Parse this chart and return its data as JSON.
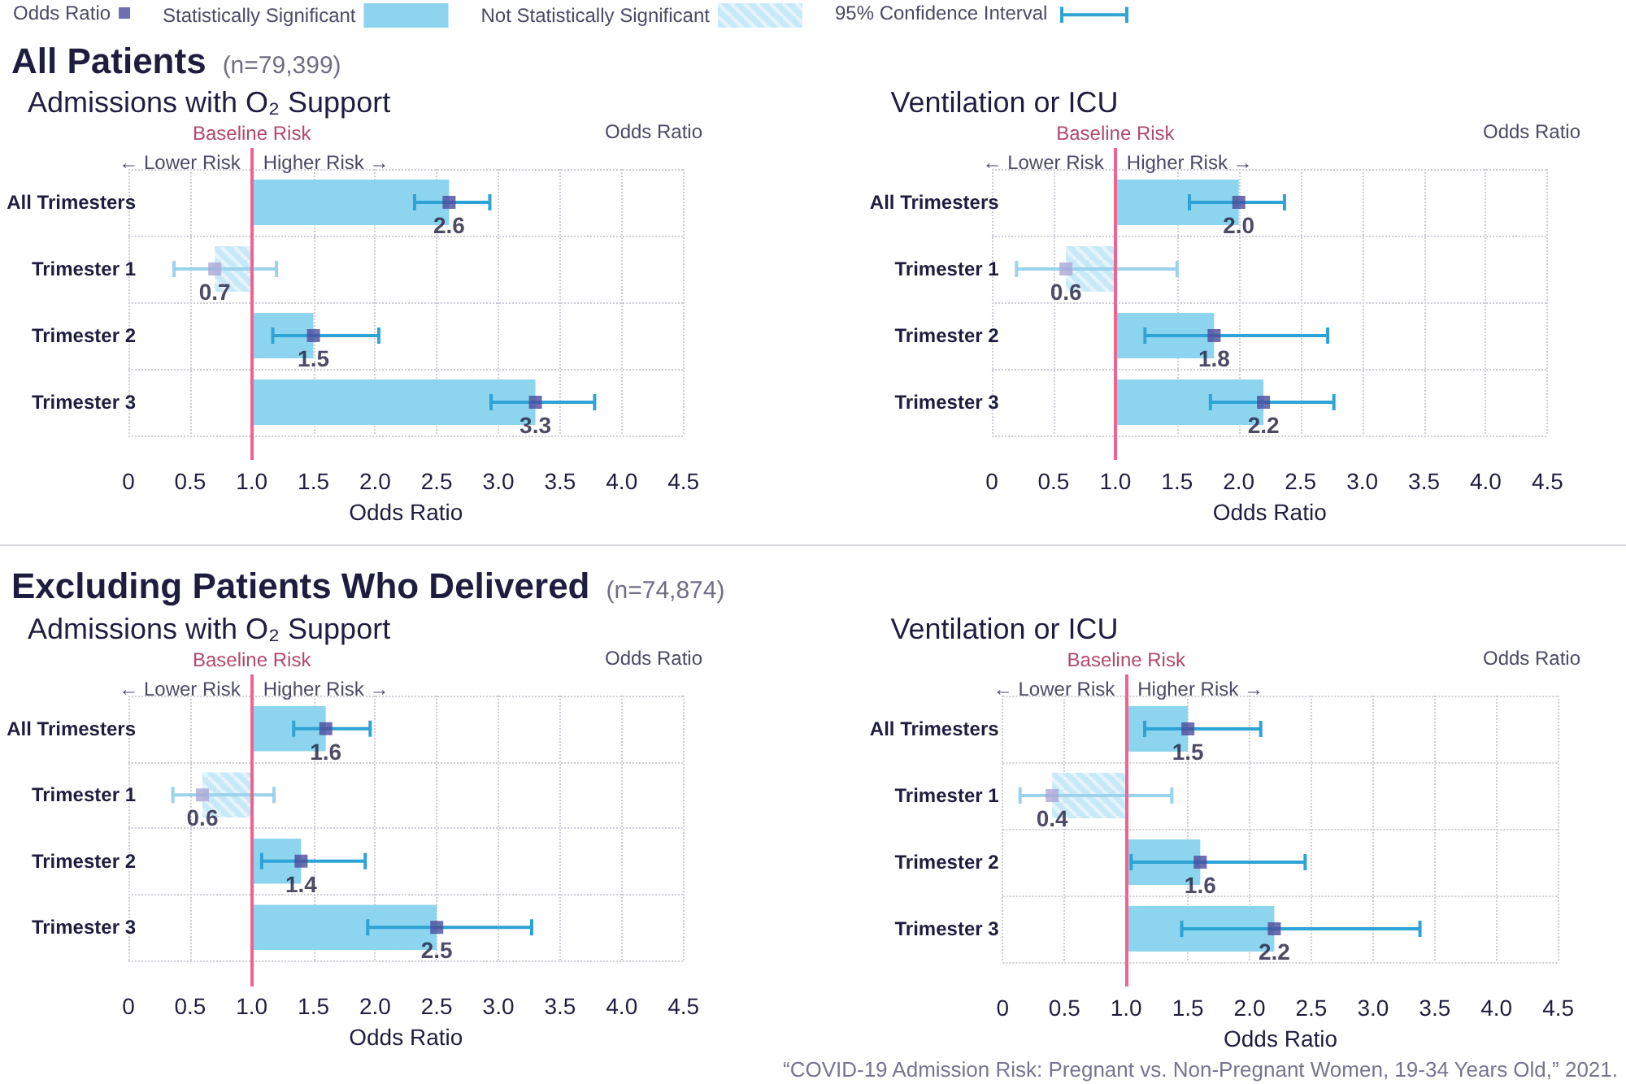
{
  "chart_data": [
    {
      "type": "other",
      "title": "All Patients",
      "subtitle": "(n=79,399)"
    },
    {
      "type": "bar",
      "orientation": "horizontal",
      "title": "Admissions with O₂ Support",
      "xlabel": "Odds Ratio",
      "categories": [
        "All Trimesters",
        "Trimester 1",
        "Trimester 2",
        "Trimester 3"
      ],
      "series": [
        {
          "name": "Odds Ratio",
          "type": "scatter",
          "color": "#4b4a9c",
          "colors": [
            "#4b4a9c",
            "#aba7d6",
            "#4b4a9c",
            "#4b4a9c"
          ],
          "values": [
            2.6,
            0.7,
            1.5,
            3.3
          ],
          "errors": [
            [
              2.32,
              2.93
            ],
            [
              0.37,
              1.2
            ],
            [
              1.17,
              2.03
            ],
            [
              2.94,
              3.78
            ]
          ],
          "value_labels": [
            "2.6",
            "0.7",
            "1.5",
            "3.3"
          ]
        },
        {
          "name": "Statistically Significant",
          "color": "#8dd5ef",
          "base": [
            1,
            null,
            1,
            1
          ],
          "values": [
            1.6,
            null,
            0.5,
            2.3
          ]
        },
        {
          "name": "Not Statistically Significant",
          "color": "#c6e8f7",
          "base": [
            null,
            1,
            null,
            null
          ],
          "values": [
            null,
            -0.3,
            null,
            null
          ]
        }
      ],
      "xlim": [
        0,
        4.5
      ],
      "xticks": [
        0,
        0.5,
        {
          "value": 1,
          "label": "1.0"
        },
        1.5,
        {
          "value": 2,
          "label": "2.0"
        },
        2.5,
        {
          "value": 3,
          "label": "3.0"
        },
        3.5,
        {
          "value": 4,
          "label": "4.0"
        },
        4.5
      ],
      "grid": true,
      "marker": "square",
      "legend": "top left",
      "ref_lines": [
        {
          "axis": "x",
          "value": 1,
          "label": "Baseline Risk",
          "color": "#f0628f"
        }
      ],
      "annotations": [
        "Odds Ratio",
        "← Lower Risk",
        "Higher Risk →",
        "95% Confidence Interval"
      ]
    },
    {
      "type": "bar",
      "orientation": "horizontal",
      "title": "Ventilation or ICU",
      "xlabel": "Odds Ratio",
      "categories": [
        "All Trimesters",
        "Trimester 1",
        "Trimester 2",
        "Trimester 3"
      ],
      "series": [
        {
          "type": "scatter",
          "color": "#4b4a9c",
          "colors": [
            "#4b4a9c",
            "#aba7d6",
            "#4b4a9c",
            "#4b4a9c"
          ],
          "values": [
            2.0,
            0.6,
            1.8,
            2.2
          ],
          "errors": [
            [
              1.6,
              2.37
            ],
            [
              0.2,
              1.5
            ],
            [
              1.24,
              2.72
            ],
            [
              1.77,
              2.77
            ]
          ],
          "value_labels": [
            "2.0",
            "0.6",
            "1.8",
            "2.2"
          ]
        },
        {
          "color": "#8dd5ef",
          "base": [
            1,
            null,
            1,
            1
          ],
          "values": [
            1.0,
            null,
            0.8,
            1.2
          ]
        },
        {
          "color": "#c6e8f7",
          "base": [
            null,
            1,
            null,
            null
          ],
          "values": [
            null,
            -0.4,
            null,
            null
          ]
        }
      ],
      "xlim": [
        0,
        4.5
      ],
      "xticks": [
        0,
        0.5,
        {
          "value": 1,
          "label": "1.0"
        },
        1.5,
        {
          "value": 2,
          "label": "2.0"
        },
        2.5,
        {
          "value": 3,
          "label": "3.0"
        },
        3.5,
        {
          "value": 4,
          "label": "4.0"
        },
        4.5
      ],
      "grid": true,
      "marker": "square",
      "ref_lines": [
        {
          "axis": "x",
          "value": 1,
          "label": "Baseline Risk",
          "color": "#f0628f"
        }
      ],
      "annotations": [
        "Odds Ratio",
        "← Lower Risk",
        "Higher Risk →"
      ]
    },
    {
      "type": "other",
      "title": "Excluding Patients Who Delivered",
      "subtitle": "(n=74,874)"
    },
    {
      "type": "bar",
      "orientation": "horizontal",
      "title": "Admissions with O₂ Support",
      "xlabel": "Odds Ratio",
      "categories": [
        "All Trimesters",
        "Trimester 1",
        "Trimester 2",
        "Trimester 3"
      ],
      "series": [
        {
          "type": "scatter",
          "color": "#4b4a9c",
          "colors": [
            "#4b4a9c",
            "#aba7d6",
            "#4b4a9c",
            "#4b4a9c"
          ],
          "values": [
            1.6,
            0.6,
            1.4,
            2.5
          ],
          "errors": [
            [
              1.34,
              1.96
            ],
            [
              0.36,
              1.18
            ],
            [
              1.08,
              1.92
            ],
            [
              1.94,
              3.27
            ]
          ],
          "value_labels": [
            "1.6",
            "0.6",
            "1.4",
            "2.5"
          ]
        },
        {
          "color": "#8dd5ef",
          "base": [
            1,
            null,
            1,
            1
          ],
          "values": [
            0.6,
            null,
            0.4,
            1.5
          ]
        },
        {
          "color": "#c6e8f7",
          "base": [
            null,
            1,
            null,
            null
          ],
          "values": [
            null,
            -0.4,
            null,
            null
          ]
        }
      ],
      "xlim": [
        0,
        4.5
      ],
      "xticks": [
        0,
        0.5,
        {
          "value": 1,
          "label": "1.0"
        },
        1.5,
        {
          "value": 2,
          "label": "2.0"
        },
        2.5,
        {
          "value": 3,
          "label": "3.0"
        },
        3.5,
        {
          "value": 4,
          "label": "4.0"
        },
        4.5
      ],
      "grid": true,
      "marker": "square",
      "ref_lines": [
        {
          "axis": "x",
          "value": 1,
          "label": "Baseline Risk",
          "color": "#f0628f"
        }
      ],
      "annotations": [
        "Odds Ratio",
        "← Lower Risk",
        "Higher Risk →"
      ]
    },
    {
      "type": "bar",
      "orientation": "horizontal",
      "title": "Ventilation or ICU",
      "xlabel": "Odds Ratio",
      "categories": [
        "All Trimesters",
        "Trimester 1",
        "Trimester 2",
        "Trimester 3"
      ],
      "series": [
        {
          "type": "scatter",
          "color": "#4b4a9c",
          "colors": [
            "#4b4a9c",
            "#aba7d6",
            "#4b4a9c",
            "#4b4a9c"
          ],
          "values": [
            1.5,
            0.4,
            1.6,
            2.2
          ],
          "errors": [
            [
              1.15,
              2.09
            ],
            [
              0.14,
              1.37
            ],
            [
              1.04,
              2.45
            ],
            [
              1.45,
              3.38
            ]
          ],
          "value_labels": [
            "1.5",
            "0.4",
            "1.6",
            "2.2"
          ]
        },
        {
          "color": "#8dd5ef",
          "base": [
            1,
            null,
            1,
            1
          ],
          "values": [
            0.5,
            null,
            0.6,
            1.2
          ]
        },
        {
          "color": "#c6e8f7",
          "base": [
            null,
            1,
            null,
            null
          ],
          "values": [
            null,
            -0.6,
            null,
            null
          ]
        }
      ],
      "xlim": [
        0,
        4.5
      ],
      "xticks": [
        0,
        0.5,
        {
          "value": 1,
          "label": "1.0"
        },
        1.5,
        {
          "value": 2,
          "label": "2.0"
        },
        2.5,
        {
          "value": 3,
          "label": "3.0"
        },
        3.5,
        {
          "value": 4,
          "label": "4.0"
        },
        4.5
      ],
      "grid": true,
      "marker": "square",
      "ref_lines": [
        {
          "axis": "x",
          "value": 1,
          "label": "Baseline Risk",
          "color": "#f0628f"
        }
      ],
      "annotations": [
        "Odds Ratio",
        "← Lower Risk",
        "Higher Risk →",
        "“COVID-19 Admission Risk: Pregnant vs. Non-Pregnant Women, 19-34 Years Old,” 2021."
      ]
    }
  ]
}
